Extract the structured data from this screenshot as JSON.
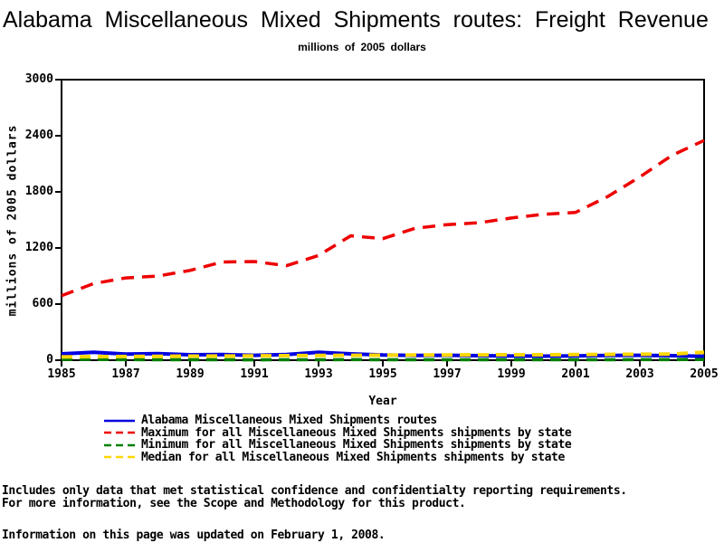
{
  "chart_data": {
    "type": "line",
    "title": "Alabama Miscellaneous Mixed Shipments routes: Freight Revenue",
    "subtitle": "millions of 2005 dollars",
    "xlabel": "Year",
    "ylabel": "millions of 2005 dollars",
    "xlim": [
      1985,
      2005
    ],
    "ylim": [
      0,
      3000
    ],
    "xticks": [
      1985,
      1987,
      1989,
      1991,
      1993,
      1995,
      1997,
      1999,
      2001,
      2003,
      2005
    ],
    "yticks": [
      0,
      600,
      1200,
      1800,
      2400,
      3000
    ],
    "grid": false,
    "legend_position": "bottom",
    "frame_color": "#000000",
    "x": [
      1985,
      1986,
      1987,
      1988,
      1989,
      1990,
      1991,
      1992,
      1993,
      1994,
      1995,
      1996,
      1997,
      1998,
      1999,
      2000,
      2001,
      2002,
      2003,
      2004,
      2005
    ],
    "series": [
      {
        "name": "Alabama Miscellaneous Mixed Shipments routes",
        "color": "#0000E0",
        "style": "solid",
        "dash": null,
        "stroke_width": 4,
        "values": [
          68,
          85,
          65,
          70,
          58,
          60,
          52,
          60,
          85,
          68,
          55,
          50,
          52,
          48,
          45,
          44,
          46,
          50,
          52,
          48,
          42
        ]
      },
      {
        "name": "Maximum for all Miscellaneous Mixed Shipments shipments by state",
        "color": "#EE0000",
        "style": "dashed",
        "dash": "14 9",
        "stroke_width": 3.5,
        "values": [
          690,
          820,
          880,
          900,
          960,
          1050,
          1055,
          1010,
          1120,
          1330,
          1300,
          1410,
          1450,
          1470,
          1520,
          1560,
          1580,
          1750,
          1960,
          2190,
          2350
        ]
      },
      {
        "name": "Minimum for all Miscellaneous Mixed Shipments shipments by state",
        "color": "#008000",
        "style": "dashed",
        "dash": "12 8",
        "stroke_width": 3.5,
        "values": [
          10,
          8,
          6,
          5,
          5,
          5,
          4,
          5,
          5,
          6,
          5,
          5,
          5,
          5,
          5,
          5,
          5,
          5,
          6,
          6,
          8
        ]
      },
      {
        "name": "Median for all Miscellaneous Mixed Shipments shipments by state",
        "color": "#FFD700",
        "style": "dashed",
        "dash": "12 8",
        "stroke_width": 4,
        "values": [
          35,
          38,
          40,
          42,
          44,
          45,
          46,
          48,
          50,
          52,
          53,
          55,
          56,
          57,
          58,
          58,
          60,
          62,
          64,
          66,
          85
        ]
      }
    ]
  },
  "footer": {
    "note_line1": "Includes only data that met statistical confidence and confidentialty reporting requirements.",
    "note_line2": "For more information, see the Scope and Methodology for this product.",
    "updated": "Information on this page was updated on February 1, 2008."
  }
}
